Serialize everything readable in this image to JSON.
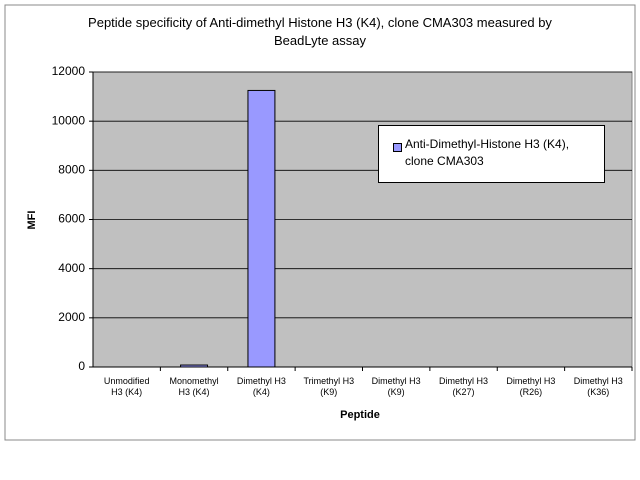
{
  "chart_data": {
    "type": "bar",
    "title": "Peptide specificity of Anti-dimethyl Histone H3 (K4), clone CMA303 measured by BeadLyte assay",
    "x_label": "Peptide",
    "y_label": "MFI",
    "categories": [
      "Unmodified\nH3 (K4)",
      "Monomethyl\nH3 (K4)",
      "Dimethyl H3\n(K4)",
      "Trimethyl H3\n(K9)",
      "Dimethyl H3\n(K9)",
      "Dimethyl H3\n(K27)",
      "Dimethyl H3\n(R26)",
      "Dimethyl H3\n(K36)"
    ],
    "series": [
      {
        "name": "Anti-Dimethyl-Histone H3 (K4), clone CMA303",
        "color": "#9999ff",
        "values": [
          0,
          80,
          11250,
          0,
          0,
          0,
          0,
          0
        ]
      }
    ],
    "ylim": [
      0,
      12000
    ],
    "yticks": [
      0,
      2000,
      4000,
      6000,
      8000,
      10000,
      12000
    ],
    "grid": true
  }
}
